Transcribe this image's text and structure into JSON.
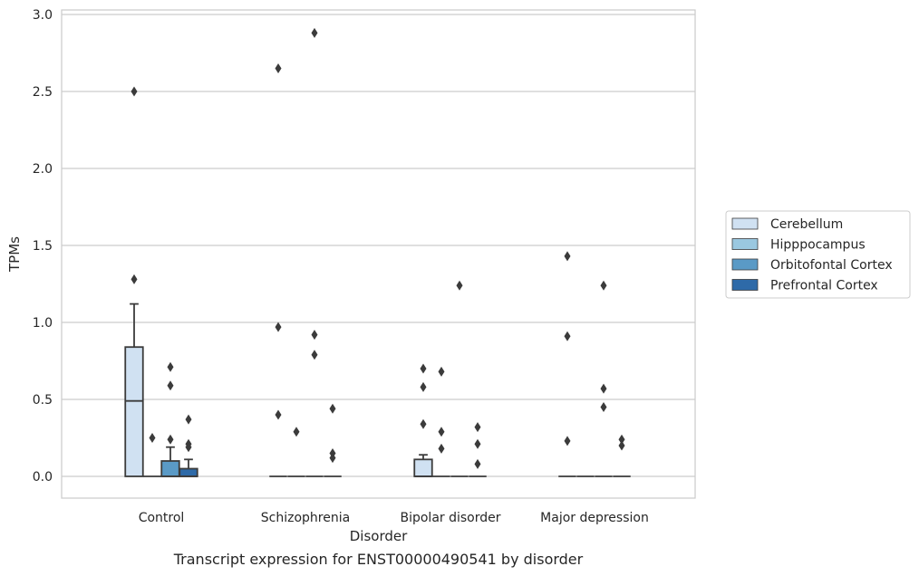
{
  "chart_data": {
    "type": "box",
    "title": "",
    "caption": "Transcript expression for ENST00000490541 by disorder",
    "xlabel": "Disorder",
    "ylabel": "TPMs",
    "ylim": [
      -0.14,
      3.03
    ],
    "yticks": [
      "0.0",
      "0.5",
      "1.0",
      "1.5",
      "2.0",
      "2.5",
      "3.0"
    ],
    "grid": "horizontal",
    "legend_position": "right",
    "categories": [
      "Control",
      "Schizophrenia",
      "Bipolar disorder",
      "Major depression"
    ],
    "series": [
      {
        "name": "Cerebellum",
        "color": "#d0e1f2",
        "boxes": [
          {
            "q1": 0,
            "median": 0.49,
            "q3": 0.84,
            "whisker_low": 0,
            "whisker_high": 1.12,
            "outliers": [
              2.5,
              1.28
            ]
          },
          {
            "q1": 0,
            "median": 0,
            "q3": 0,
            "whisker_low": 0,
            "whisker_high": 0,
            "outliers": [
              2.65,
              0.97,
              0.4
            ]
          },
          {
            "q1": 0,
            "median": 0,
            "q3": 0.11,
            "whisker_low": 0,
            "whisker_high": 0.14,
            "outliers": [
              0.7,
              0.58,
              0.34
            ]
          },
          {
            "q1": 0,
            "median": 0,
            "q3": 0,
            "whisker_low": 0,
            "whisker_high": 0,
            "outliers": [
              1.43,
              0.91,
              0.23
            ]
          }
        ]
      },
      {
        "name": "Hipppocampus",
        "color": "#9ac8e0",
        "boxes": [
          {
            "q1": 0,
            "median": 0,
            "q3": 0,
            "whisker_low": 0,
            "whisker_high": 0,
            "outliers": [
              0.25
            ]
          },
          {
            "q1": 0,
            "median": 0,
            "q3": 0,
            "whisker_low": 0,
            "whisker_high": 0,
            "outliers": [
              0.29
            ]
          },
          {
            "q1": 0,
            "median": 0,
            "q3": 0,
            "whisker_low": 0,
            "whisker_high": 0,
            "outliers": [
              0.68,
              0.29,
              0.18
            ]
          },
          {
            "q1": 0,
            "median": 0,
            "q3": 0,
            "whisker_low": 0,
            "whisker_high": 0,
            "outliers": []
          }
        ]
      },
      {
        "name": "Orbitofontal Cortex",
        "color": "#5a9ac6",
        "boxes": [
          {
            "q1": 0,
            "median": 0,
            "q3": 0.1,
            "whisker_low": 0,
            "whisker_high": 0.19,
            "outliers": [
              0.71,
              0.59,
              0.24
            ]
          },
          {
            "q1": 0,
            "median": 0,
            "q3": 0,
            "whisker_low": 0,
            "whisker_high": 0,
            "outliers": [
              2.88,
              0.92,
              0.79
            ]
          },
          {
            "q1": 0,
            "median": 0,
            "q3": 0,
            "whisker_low": 0,
            "whisker_high": 0,
            "outliers": [
              1.24
            ]
          },
          {
            "q1": 0,
            "median": 0,
            "q3": 0,
            "whisker_low": 0,
            "whisker_high": 0,
            "outliers": [
              1.24,
              0.57,
              0.45
            ]
          }
        ]
      },
      {
        "name": "Prefrontal Cortex",
        "color": "#2e6aa8",
        "boxes": [
          {
            "q1": 0,
            "median": 0,
            "q3": 0.05,
            "whisker_low": 0,
            "whisker_high": 0.11,
            "outliers": [
              0.37,
              0.21,
              0.19
            ]
          },
          {
            "q1": 0,
            "median": 0,
            "q3": 0,
            "whisker_low": 0,
            "whisker_high": 0,
            "outliers": [
              0.44,
              0.15,
              0.12
            ]
          },
          {
            "q1": 0,
            "median": 0,
            "q3": 0,
            "whisker_low": 0,
            "whisker_high": 0,
            "outliers": [
              0.32,
              0.21,
              0.08
            ]
          },
          {
            "q1": 0,
            "median": 0,
            "q3": 0,
            "whisker_low": 0,
            "whisker_high": 0,
            "outliers": [
              0.24,
              0.2
            ]
          }
        ]
      }
    ]
  }
}
